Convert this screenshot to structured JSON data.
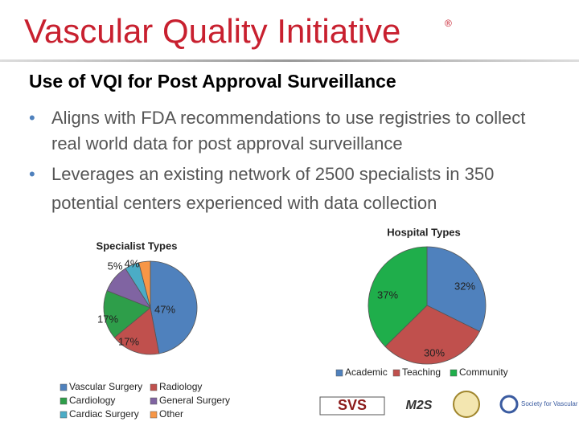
{
  "header": {
    "title": "Vascular Quality Initiative",
    "mark": "®"
  },
  "heading": "Use of VQI for Post Approval Surveillance",
  "bullets": [
    "Aligns with FDA recommendations to use registries to collect real world data for post approval surveillance",
    "Leverages an existing network of 2500 specialists in 350 potential centers experienced with data collection"
  ],
  "logos": [
    "SVS",
    "M2S",
    "Society for Vascular Medicine"
  ],
  "chart_data": [
    {
      "type": "pie",
      "title": "Specialist Types",
      "categories": [
        "Vascular Surgery",
        "Radiology",
        "Cardiology",
        "General Surgery",
        "Cardiac Surgery",
        "Other"
      ],
      "values": [
        47,
        17,
        17,
        10,
        5,
        4
      ],
      "value_labels": [
        "47%",
        "17%",
        "17%",
        null,
        "5%",
        "4%"
      ],
      "colors": [
        "#4f81bd",
        "#c0504d",
        "#2e9e4a",
        "#8064a2",
        "#4bacc6",
        "#f79646"
      ]
    },
    {
      "type": "pie",
      "title": "Hospital Types",
      "categories": [
        "Academic",
        "Teaching",
        "Community"
      ],
      "values": [
        32,
        30,
        37
      ],
      "value_labels": [
        "32%",
        "30%",
        "37%"
      ],
      "colors": [
        "#4f81bd",
        "#c0504d",
        "#1fae4b"
      ]
    }
  ]
}
